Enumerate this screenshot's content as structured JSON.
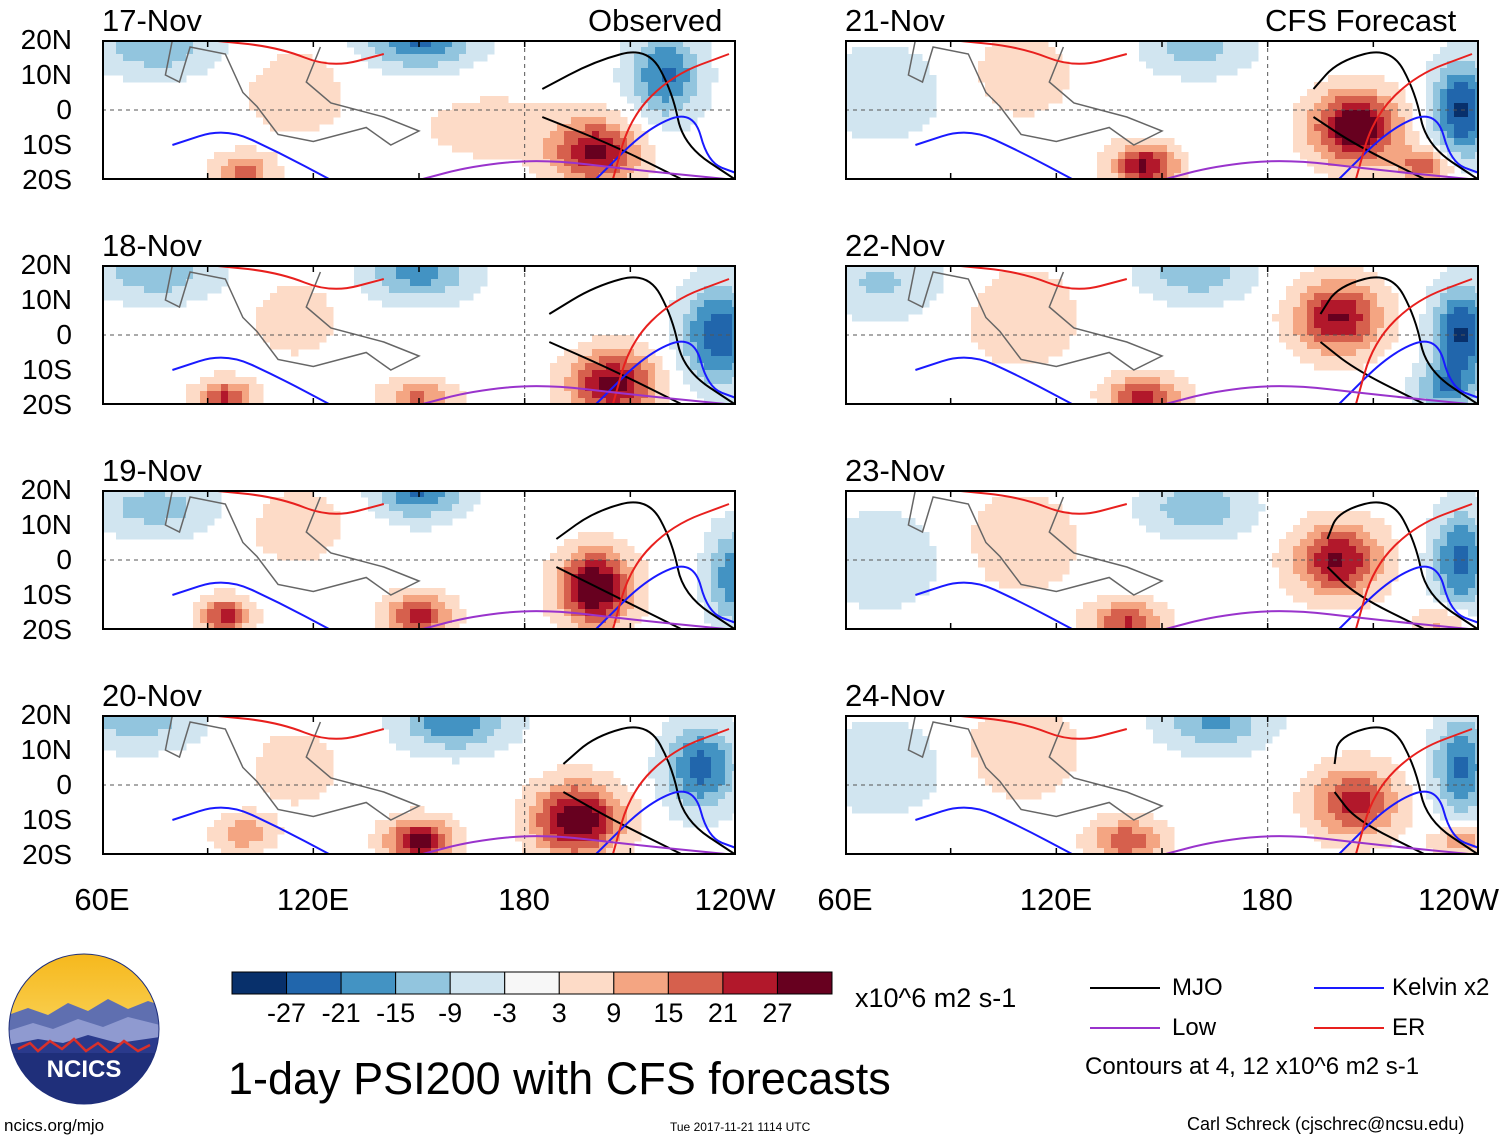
{
  "chart_data": {
    "type": "heatmap",
    "title": "1-day PSI200 with CFS forecasts",
    "variable": "PSI200",
    "units": "x10^6 m2 s-1",
    "x_ticks": [
      "60E",
      "120E",
      "180",
      "120W"
    ],
    "y_ticks": [
      "20N",
      "10N",
      "0",
      "10S",
      "20S"
    ],
    "lon_range_deg_east": [
      60,
      240
    ],
    "lat_range": [
      -20,
      20
    ],
    "color_levels": [
      -27,
      -21,
      -15,
      -9,
      -3,
      3,
      9,
      15,
      21,
      27
    ],
    "color_palette": [
      "#08306b",
      "#2166ac",
      "#4393c3",
      "#92c5de",
      "#d1e5f0",
      "#f7f7f7",
      "#fddbc7",
      "#f4a582",
      "#d6604d",
      "#b2182b",
      "#67001f"
    ],
    "contour_note": "Contours at 4, 12 x10^6 m2 s-1",
    "legend": [
      {
        "name": "MJO",
        "color": "#000000"
      },
      {
        "name": "Kelvin x2",
        "color": "#1a1aff"
      },
      {
        "name": "Low",
        "color": "#9933cc"
      },
      {
        "name": "ER",
        "color": "#e8201e"
      }
    ],
    "observed_label": "Observed",
    "forecast_label": "CFS Forecast",
    "panels": [
      {
        "date": "17-Nov",
        "kind": "observed"
      },
      {
        "date": "18-Nov",
        "kind": "observed"
      },
      {
        "date": "19-Nov",
        "kind": "observed"
      },
      {
        "date": "20-Nov",
        "kind": "observed"
      },
      {
        "date": "21-Nov",
        "kind": "forecast"
      },
      {
        "date": "22-Nov",
        "kind": "forecast"
      },
      {
        "date": "23-Nov",
        "kind": "forecast"
      },
      {
        "date": "24-Nov",
        "kind": "forecast"
      }
    ]
  },
  "footer": {
    "logo_text": "NCICS",
    "site": "ncics.org/mjo",
    "timestamp": "Tue 2017-11-21 1114 UTC",
    "author": "Carl Schreck (cjschrec@ncsu.edu)"
  }
}
